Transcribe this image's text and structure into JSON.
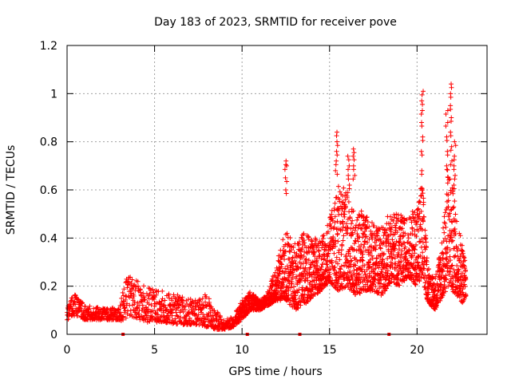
{
  "chart_data": {
    "type": "scatter",
    "title": "Day 183 of 2023, SRMTID for receiver pove",
    "xlabel": "GPS time / hours",
    "ylabel": "SRMTID / TECUs",
    "xlim": [
      0,
      24
    ],
    "ylim": [
      0,
      1.2
    ],
    "x_ticks": [
      0,
      5,
      10,
      15,
      20
    ],
    "x_tick_labels": [
      "0",
      "5",
      "10",
      "15",
      "20"
    ],
    "y_ticks": [
      0,
      0.2,
      0.4,
      0.6,
      0.8,
      1.0,
      1.2
    ],
    "y_tick_labels": [
      "0",
      "0.2",
      "0.4",
      "0.6",
      "0.8",
      "1",
      "1.2"
    ],
    "grid": true,
    "marker": "+",
    "color": "#ff0000",
    "gap_markers_x": [
      3.2,
      10.3,
      13.3,
      18.4
    ],
    "envelope": {
      "x": [
        0,
        0.5,
        1.0,
        2.0,
        3.0,
        3.2,
        3.5,
        4.5,
        5.5,
        6.5,
        7.5,
        8.0,
        8.5,
        9.0,
        9.5,
        10.0,
        10.5,
        11.0,
        11.5,
        12.0,
        12.5,
        13.0,
        13.5,
        14.0,
        14.5,
        15.0,
        15.5,
        16.0,
        16.5,
        17.0,
        17.5,
        18.0,
        18.5,
        19.0,
        19.5,
        20.0,
        20.3,
        20.6,
        21.0,
        21.5,
        21.8,
        22.0,
        22.3,
        22.6,
        22.8
      ],
      "low": [
        0.06,
        0.08,
        0.06,
        0.06,
        0.06,
        0.05,
        0.08,
        0.05,
        0.05,
        0.04,
        0.04,
        0.03,
        0.02,
        0.02,
        0.03,
        0.06,
        0.1,
        0.1,
        0.12,
        0.14,
        0.14,
        0.1,
        0.12,
        0.15,
        0.18,
        0.22,
        0.18,
        0.2,
        0.16,
        0.18,
        0.18,
        0.16,
        0.22,
        0.2,
        0.24,
        0.2,
        0.22,
        0.14,
        0.1,
        0.16,
        0.2,
        0.18,
        0.16,
        0.13,
        0.16
      ],
      "high": [
        0.13,
        0.17,
        0.12,
        0.11,
        0.11,
        0.2,
        0.25,
        0.2,
        0.18,
        0.16,
        0.14,
        0.18,
        0.1,
        0.06,
        0.08,
        0.14,
        0.18,
        0.14,
        0.18,
        0.3,
        0.45,
        0.38,
        0.42,
        0.4,
        0.4,
        0.48,
        0.62,
        0.6,
        0.5,
        0.52,
        0.46,
        0.45,
        0.52,
        0.5,
        0.48,
        0.55,
        0.65,
        0.3,
        0.22,
        0.45,
        0.75,
        0.62,
        0.5,
        0.38,
        0.28
      ]
    },
    "peaks": [
      {
        "x": 12.5,
        "values": [
          0.6,
          0.65,
          0.7,
          0.72
        ]
      },
      {
        "x": 15.4,
        "values": [
          0.68,
          0.72,
          0.76,
          0.8,
          0.84
        ]
      },
      {
        "x": 16.1,
        "values": [
          0.62,
          0.66,
          0.7,
          0.74
        ]
      },
      {
        "x": 16.4,
        "values": [
          0.66,
          0.7,
          0.74,
          0.77
        ]
      },
      {
        "x": 20.3,
        "values": [
          0.68,
          0.76,
          0.82,
          0.88,
          0.93,
          0.97,
          1.01
        ]
      },
      {
        "x": 21.7,
        "values": [
          0.7,
          0.76,
          0.82,
          0.88,
          0.93
        ]
      },
      {
        "x": 21.95,
        "values": [
          0.72,
          0.78,
          0.84,
          0.9,
          0.95,
          1.0,
          1.04
        ]
      },
      {
        "x": 22.15,
        "values": [
          0.62,
          0.66,
          0.7,
          0.74,
          0.8
        ]
      }
    ]
  }
}
